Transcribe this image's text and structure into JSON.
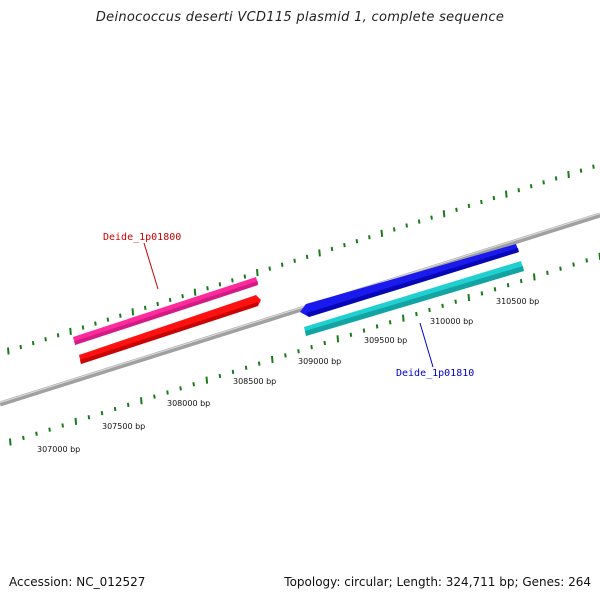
{
  "title": "Deinococcus deserti VCD115 plasmid 1, complete sequence",
  "accession": "Accession: NC_012527",
  "summary": "Topology: circular; Length: 324,711 bp; Genes: 264",
  "scale": {
    "tick_labels": [
      "307000 bp",
      "307500 bp",
      "308000 bp",
      "308500 bp",
      "309000 bp",
      "309500 bp",
      "310000 bp",
      "310500 bp"
    ],
    "tick_color": "#1a7a1a"
  },
  "genes": [
    {
      "name": "Deide_1p01800",
      "label_color": "#cc0000",
      "feature_colors": [
        "#ff2a9c",
        "#ff1111"
      ]
    },
    {
      "name": "Deide_1p01810",
      "label_color": "#0000cc",
      "feature_colors": [
        "#1a1aee",
        "#20d0d0"
      ]
    }
  ],
  "backbone_color": "#808080"
}
